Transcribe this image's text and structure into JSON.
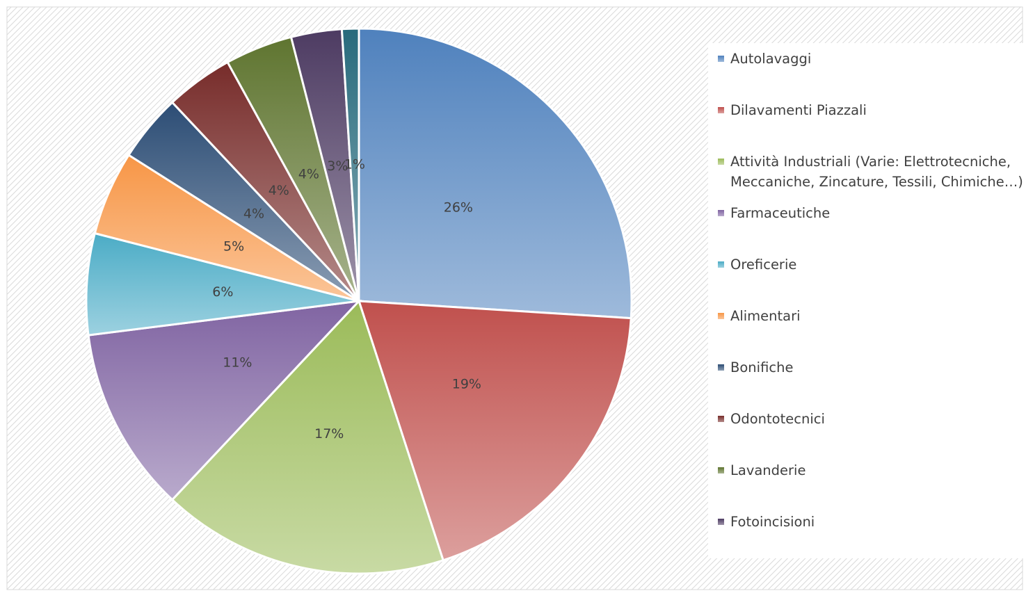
{
  "chart_data": {
    "type": "pie",
    "categories": [
      "Autolavaggi",
      "Dilavamenti Piazzali",
      "Attività Industriali (Varie: Elettrotecniche, Meccaniche, Zincature, Tessili, Chimiche…)",
      "Farmaceutiche",
      "Oreficerie",
      "Alimentari",
      "Bonifiche",
      "Odontotecnici",
      "Lavanderie",
      "Fotoincisioni",
      null
    ],
    "values": [
      26,
      19,
      17,
      11,
      6,
      5,
      4,
      4,
      4,
      3,
      1
    ],
    "value_labels": [
      "26%",
      "19%",
      "17%",
      "11%",
      "6%",
      "5%",
      "4%",
      "4%",
      "4%",
      "3%",
      "1%"
    ],
    "colors": [
      "#4f81bd",
      "#c0504d",
      "#9bbb59",
      "#8064a2",
      "#4bacc6",
      "#f79646",
      "#2c4d75",
      "#772c2a",
      "#5f7530",
      "#4d3b62",
      "#276a7c"
    ],
    "legend": "right"
  }
}
